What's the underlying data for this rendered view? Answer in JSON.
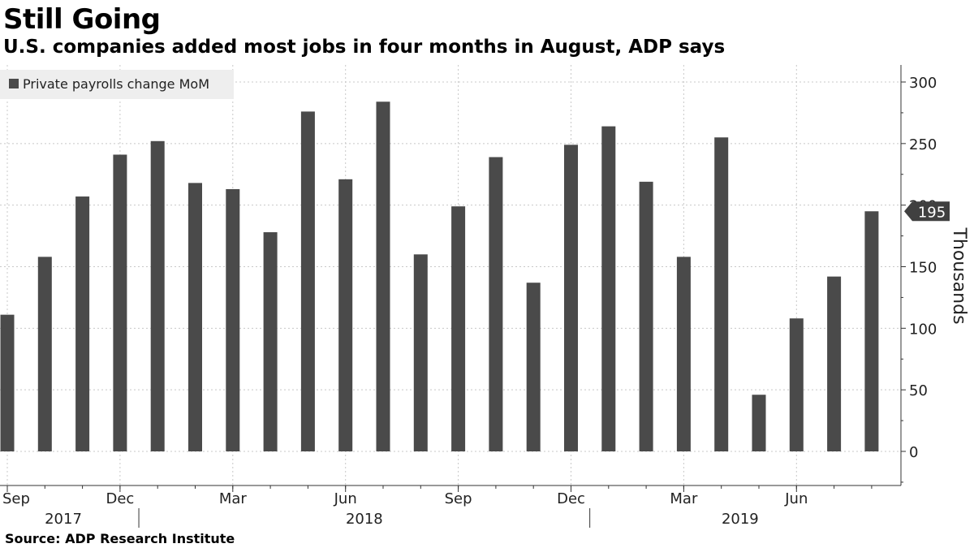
{
  "title": "Still Going",
  "subtitle": "U.S. companies added most jobs in four months in August, ADP says",
  "source": "Source: ADP Research Institute",
  "colors": {
    "bar": "#4a4a4a",
    "grid": "#c8c8c8",
    "axis": "#333333",
    "legend_bg": "#eeeeee",
    "callout_bg": "#404040"
  },
  "chart_data": {
    "type": "bar",
    "title": "Still Going",
    "subtitle": "U.S. companies added most jobs in four months in August, ADP says",
    "ylabel": "Thousands",
    "xlabel": "",
    "ylim": [
      -25,
      310
    ],
    "yticks": [
      0,
      50,
      100,
      150,
      200,
      250,
      300
    ],
    "grid": true,
    "legend": {
      "placement": "top-left",
      "entries": [
        "Private payrolls change MoM"
      ]
    },
    "series": [
      {
        "name": "Private payrolls change MoM",
        "categories": [
          "2017-09",
          "2017-10",
          "2017-11",
          "2017-12",
          "2018-01",
          "2018-02",
          "2018-03",
          "2018-04",
          "2018-05",
          "2018-06",
          "2018-07",
          "2018-08",
          "2018-09",
          "2018-10",
          "2018-11",
          "2018-12",
          "2019-01",
          "2019-02",
          "2019-03",
          "2019-04",
          "2019-05",
          "2019-06",
          "2019-07",
          "2019-08"
        ],
        "values": [
          111,
          158,
          207,
          241,
          252,
          218,
          213,
          178,
          276,
          221,
          284,
          160,
          199,
          239,
          137,
          249,
          264,
          219,
          158,
          255,
          46,
          108,
          142,
          195
        ]
      }
    ],
    "x_tick_labels": [
      {
        "label": "Sep",
        "index": 0
      },
      {
        "label": "Dec",
        "index": 3
      },
      {
        "label": "Mar",
        "index": 6
      },
      {
        "label": "Jun",
        "index": 9
      },
      {
        "label": "Sep",
        "index": 12
      },
      {
        "label": "Dec",
        "index": 15
      },
      {
        "label": "Mar",
        "index": 18
      },
      {
        "label": "Jun",
        "index": 21
      }
    ],
    "year_labels": [
      {
        "label": "2017",
        "start": 0,
        "end": 3
      },
      {
        "label": "2018",
        "start": 4,
        "end": 15
      },
      {
        "label": "2019",
        "start": 16,
        "end": 23
      }
    ],
    "last_value_callout": "195"
  }
}
